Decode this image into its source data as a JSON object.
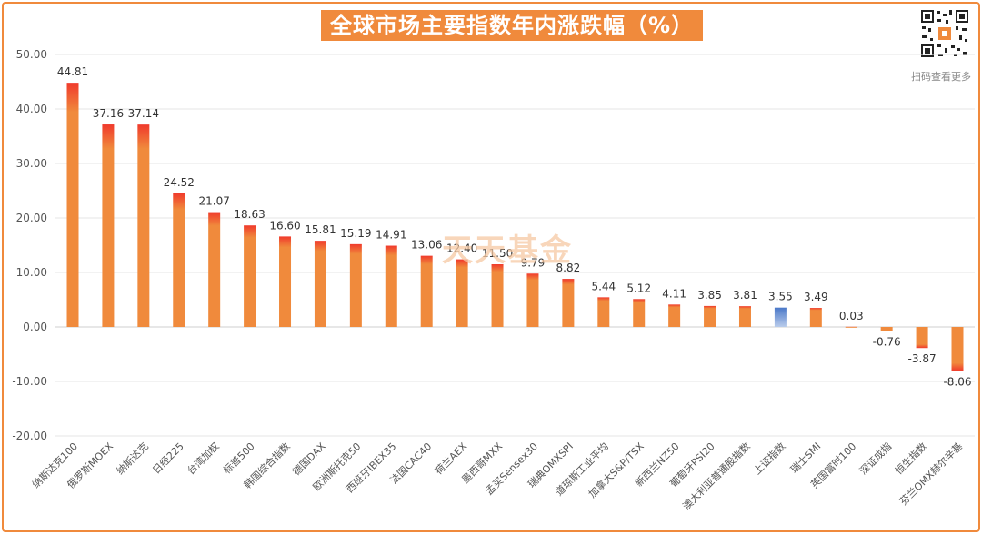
{
  "header": {
    "title": "全球市场主要指数年内涨跌幅（%）",
    "qr_caption": "扫码查看更多",
    "watermark": "天天基金"
  },
  "colors": {
    "frame": "#f08a3c",
    "title_bg": "#f08a3c",
    "bar_top": "#f03a2c",
    "bar_body": "#f08a3c",
    "highlight_top": "#4a78c8",
    "highlight_body": "#b9cceb",
    "grid": "#e6e6e6"
  },
  "chart_data": {
    "type": "bar",
    "title": "全球市场主要指数年内涨跌幅（%）",
    "xlabel": "",
    "ylabel": "",
    "ylim": [
      -20,
      50
    ],
    "yticks": [
      "50.00",
      "40.00",
      "30.00",
      "20.00",
      "10.00",
      "0.00",
      "-10.00",
      "-20.00"
    ],
    "grid": true,
    "categories": [
      "纳斯达克100",
      "俄罗斯MOEX",
      "纳斯达克",
      "日经225",
      "台湾加权",
      "标普500",
      "韩国综合指数",
      "德国DAX",
      "欧洲斯托克50",
      "西班牙IBEX35",
      "法国CAC40",
      "荷兰AEX",
      "墨西哥MXX",
      "孟买Sensex30",
      "瑞典OMXSPI",
      "道琼斯工业平均",
      "加拿大S&P/TSX",
      "新西兰NZ50",
      "葡萄牙PSI20",
      "澳大利亚普通股指数",
      "上证指数",
      "瑞士SMI",
      "英国富时100",
      "深证成指",
      "恒生指数",
      "芬兰OMX赫尔辛基"
    ],
    "values": [
      44.81,
      37.16,
      37.14,
      24.52,
      21.07,
      18.63,
      16.6,
      15.81,
      15.19,
      14.91,
      13.06,
      12.4,
      11.5,
      9.79,
      8.82,
      5.44,
      5.12,
      4.11,
      3.85,
      3.81,
      3.55,
      3.49,
      0.03,
      -0.76,
      -3.87,
      -8.06
    ],
    "labels": [
      "44.81",
      "37.16",
      "37.14",
      "24.52",
      "21.07",
      "18.63",
      "16.60",
      "15.81",
      "15.19",
      "14.91",
      "13.06",
      "12.40",
      "11.50",
      "9.79",
      "8.82",
      "5.44",
      "5.12",
      "4.11",
      "3.85",
      "3.81",
      "3.55",
      "3.49",
      "0.03",
      "-0.76",
      "-3.87",
      "-8.06"
    ],
    "highlight": "上证指数"
  }
}
